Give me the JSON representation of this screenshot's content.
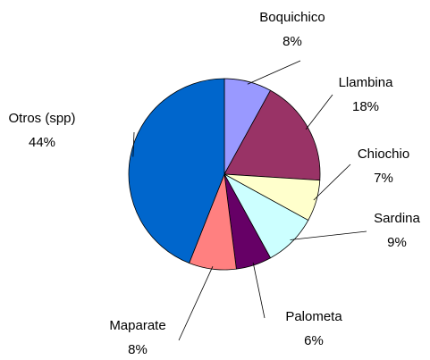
{
  "chart_data": {
    "type": "pie",
    "categories": [
      "Boquichico",
      "Llambina",
      "Chiochio",
      "Sardina",
      "Palometa",
      "Maparate",
      "Otros (spp)"
    ],
    "values": [
      8,
      18,
      7,
      9,
      6,
      8,
      44
    ],
    "value_labels": [
      "8%",
      "18%",
      "7%",
      "9%",
      "6%",
      "8%",
      "44%"
    ],
    "colors": [
      "#9999ff",
      "#993366",
      "#ffffcc",
      "#ccffff",
      "#660066",
      "#ff8080",
      "#0066cc"
    ]
  }
}
